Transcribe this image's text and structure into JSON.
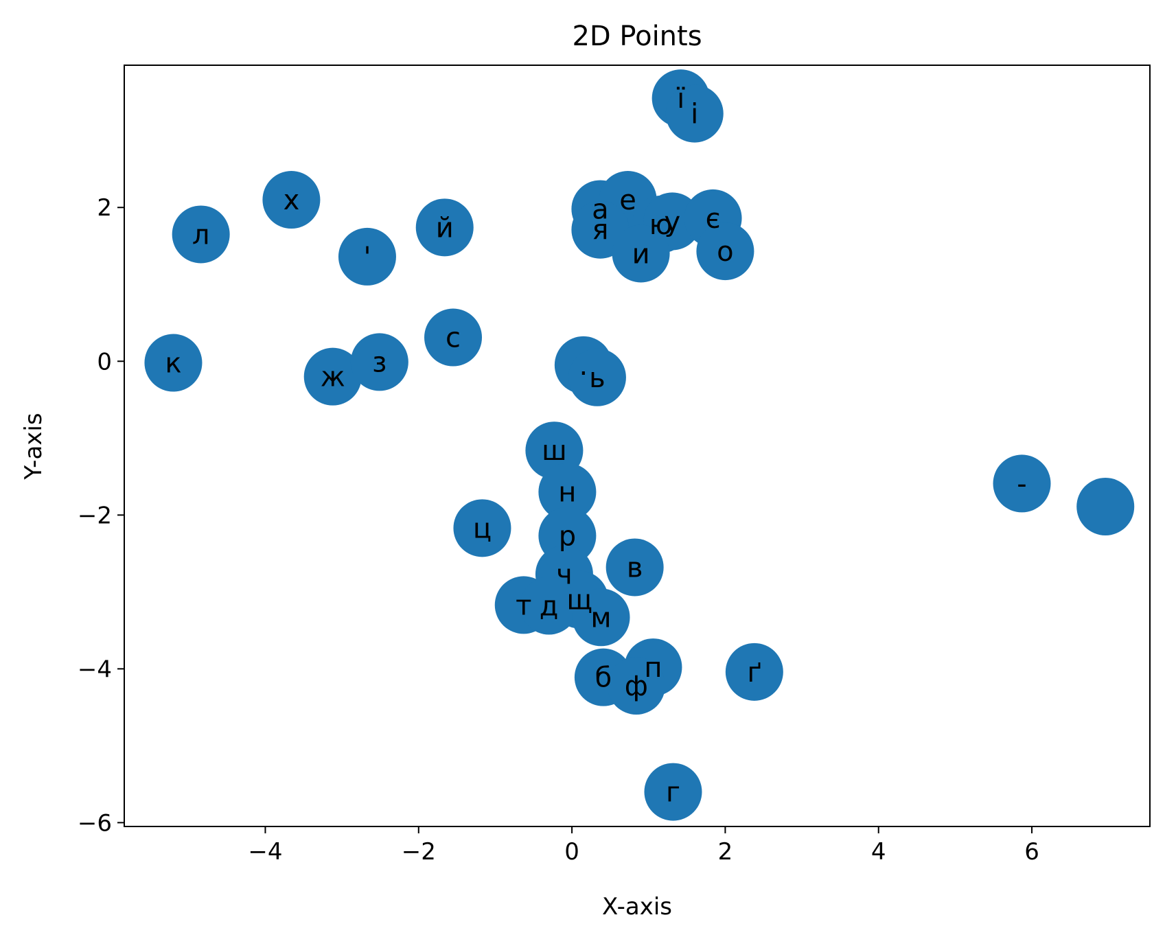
{
  "chart_data": {
    "type": "scatter",
    "title": "2D Points",
    "xlabel": "X-axis",
    "ylabel": "Y-axis",
    "xlim": [
      -5.84,
      7.54
    ],
    "ylim": [
      -6.05,
      3.85
    ],
    "xticks": [
      -4,
      -2,
      0,
      2,
      4,
      6
    ],
    "yticks": [
      -6,
      -4,
      -2,
      0,
      2
    ],
    "grid": false,
    "legend": "none",
    "marker_color": "#1f77b4",
    "points": [
      {
        "label": "ї",
        "x": 1.42,
        "y": 3.42
      },
      {
        "label": "і",
        "x": 1.6,
        "y": 3.22
      },
      {
        "label": "х",
        "x": -3.66,
        "y": 2.1
      },
      {
        "label": "л",
        "x": -4.84,
        "y": 1.65
      },
      {
        "label": "'",
        "x": -2.67,
        "y": 1.36
      },
      {
        "label": "й",
        "x": -1.66,
        "y": 1.74
      },
      {
        "label": "а",
        "x": 0.37,
        "y": 1.98
      },
      {
        "label": "е",
        "x": 0.73,
        "y": 2.1
      },
      {
        "label": "я",
        "x": 0.37,
        "y": 1.71
      },
      {
        "label": "ю",
        "x": 1.16,
        "y": 1.78
      },
      {
        "label": "у",
        "x": 1.31,
        "y": 1.82
      },
      {
        "label": "є",
        "x": 1.84,
        "y": 1.86
      },
      {
        "label": "и",
        "x": 0.9,
        "y": 1.4
      },
      {
        "label": "о",
        "x": 2.0,
        "y": 1.43
      },
      {
        "label": "с",
        "x": -1.55,
        "y": 0.31
      },
      {
        "label": "к",
        "x": -5.2,
        "y": -0.02
      },
      {
        "label": "ж",
        "x": -3.12,
        "y": -0.2
      },
      {
        "label": "з",
        "x": -2.51,
        "y": -0.01
      },
      {
        "label": ".",
        "x": 0.15,
        "y": -0.05
      },
      {
        "label": "ь",
        "x": 0.33,
        "y": -0.21
      },
      {
        "label": "ш",
        "x": -0.23,
        "y": -1.16
      },
      {
        "label": "н",
        "x": -0.06,
        "y": -1.7
      },
      {
        "label": "ц",
        "x": -1.17,
        "y": -2.17
      },
      {
        "label": "р",
        "x": -0.06,
        "y": -2.27
      },
      {
        "label": "в",
        "x": 0.82,
        "y": -2.68
      },
      {
        "label": "ч",
        "x": -0.1,
        "y": -2.77
      },
      {
        "label": "щ",
        "x": 0.1,
        "y": -3.1
      },
      {
        "label": "т",
        "x": -0.63,
        "y": -3.17
      },
      {
        "label": "д",
        "x": -0.3,
        "y": -3.18
      },
      {
        "label": "м",
        "x": 0.38,
        "y": -3.33
      },
      {
        "label": "п",
        "x": 1.06,
        "y": -3.98
      },
      {
        "label": "б",
        "x": 0.41,
        "y": -4.11
      },
      {
        "label": "ф",
        "x": 0.84,
        "y": -4.22
      },
      {
        "label": "ґ",
        "x": 2.38,
        "y": -4.04
      },
      {
        "label": "г",
        "x": 1.32,
        "y": -5.6
      },
      {
        "label": "-",
        "x": 5.87,
        "y": -1.59
      },
      {
        "label": "",
        "x": 6.96,
        "y": -1.89
      }
    ]
  }
}
